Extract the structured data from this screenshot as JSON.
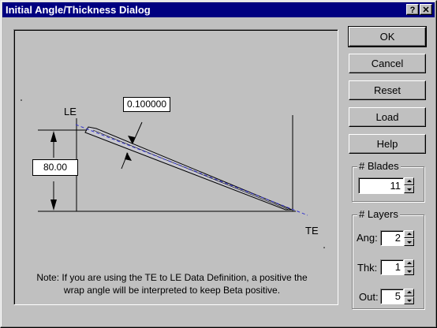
{
  "window": {
    "title": "Initial Angle/Thickness Dialog",
    "help_glyph": "?",
    "close_glyph": "✕"
  },
  "diagram": {
    "le_label": "LE",
    "te_label": "TE",
    "thickness_value": "0.100000",
    "angle_value": "80.00",
    "note_line1": "Note: If you are using the TE to LE Data Definition, a positive the",
    "note_line2": "wrap angle will be interpreted to keep Beta positive."
  },
  "buttons": {
    "ok": "OK",
    "cancel": "Cancel",
    "reset": "Reset",
    "load": "Load",
    "help": "Help"
  },
  "blades": {
    "label": "# Blades",
    "value": "11"
  },
  "layers": {
    "label": "# Layers",
    "ang_label": "Ang:",
    "ang_value": "2",
    "thk_label": "Thk:",
    "thk_value": "1",
    "out_label": "Out:",
    "out_value": "5"
  }
}
